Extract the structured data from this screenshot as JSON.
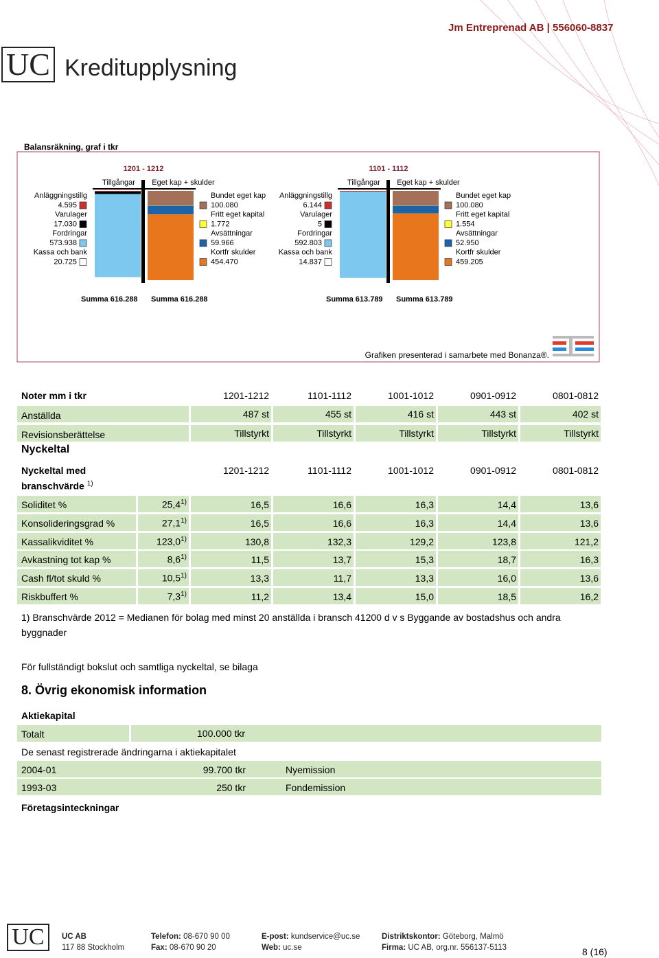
{
  "header": {
    "company": "Jm Entreprenad AB | 556060-8837",
    "logo": "UC",
    "title": "Kreditupplysning"
  },
  "balance": {
    "title": "Balansräkning, graf i tkr",
    "panels": [
      {
        "period": "1201 - 1212",
        "assets_label": "Tillgångar",
        "liabilities_label": "Eget kap + skulder",
        "assets": [
          {
            "name": "Anläggningstillg",
            "value": 4595,
            "label": "4.595",
            "color": "#c8312f"
          },
          {
            "name": "Varulager",
            "value": 17030,
            "label": "17.030",
            "color": "#000000"
          },
          {
            "name": "Fordringar",
            "value": 573938,
            "label": "573.938",
            "color": "#7cc8ee"
          },
          {
            "name": "Kassa och bank",
            "value": 20725,
            "label": "20.725",
            "color": "#ffffff"
          }
        ],
        "liabilities": [
          {
            "name": "Bundet eget kap",
            "value": 100080,
            "label": "100.080",
            "color": "#a5705a"
          },
          {
            "name": "Fritt eget kapital",
            "value": 1772,
            "label": "1.772",
            "color": "#ffff33"
          },
          {
            "name": "Avsättningar",
            "value": 59966,
            "label": "59.966",
            "color": "#1d63a8"
          },
          {
            "name": "Kortfr skulder",
            "value": 454470,
            "label": "454.470",
            "color": "#e8761c"
          }
        ],
        "assets_sum": "Summa 616.288",
        "liabilities_sum": "Summa 616.288"
      },
      {
        "period": "1101 - 1112",
        "assets_label": "Tillgångar",
        "liabilities_label": "Eget kap + skulder",
        "assets": [
          {
            "name": "Anläggningstillg",
            "value": 6144,
            "label": "6.144",
            "color": "#c8312f"
          },
          {
            "name": "Varulager",
            "value": 5,
            "label": "5",
            "color": "#000000"
          },
          {
            "name": "Fordringar",
            "value": 592803,
            "label": "592.803",
            "color": "#7cc8ee"
          },
          {
            "name": "Kassa och bank",
            "value": 14837,
            "label": "14.837",
            "color": "#ffffff"
          }
        ],
        "liabilities": [
          {
            "name": "Bundet eget kap",
            "value": 100080,
            "label": "100.080",
            "color": "#a5705a"
          },
          {
            "name": "Fritt eget kapital",
            "value": 1554,
            "label": "1.554",
            "color": "#ffff33"
          },
          {
            "name": "Avsättningar",
            "value": 52950,
            "label": "52.950",
            "color": "#1d63a8"
          },
          {
            "name": "Kortfr skulder",
            "value": 459205,
            "label": "459.205",
            "color": "#e8761c"
          }
        ],
        "assets_sum": "Summa 613.789",
        "liabilities_sum": "Summa 613.789"
      }
    ],
    "credit": "Grafiken presenterad i samarbete med Bonanza®."
  },
  "notes": {
    "title": "Noter mm i tkr",
    "periods": [
      "1201-1212",
      "1101-1112",
      "1001-1012",
      "0901-0912",
      "0801-0812"
    ],
    "rows": [
      {
        "label": "Anställda",
        "values": [
          "487 st",
          "455 st",
          "416 st",
          "443 st",
          "402 st"
        ]
      },
      {
        "label": "Revisionsberättelse",
        "values": [
          "Tillstyrkt",
          "Tillstyrkt",
          "Tillstyrkt",
          "Tillstyrkt",
          "Tillstyrkt"
        ]
      }
    ]
  },
  "key_figures": {
    "title": "Nyckeltal",
    "header": "Nyckeltal med",
    "header2": "branschvärde",
    "header_note": "1)",
    "periods": [
      "1201-1212",
      "1101-1112",
      "1001-1012",
      "0901-0912",
      "0801-0812"
    ],
    "rows": [
      {
        "label": "Soliditet %",
        "industry": "25,4",
        "note": "1)",
        "values": [
          "16,5",
          "16,6",
          "16,3",
          "14,4",
          "13,6"
        ]
      },
      {
        "label": "Konsolideringsgrad %",
        "industry": "27,1",
        "note": "1)",
        "values": [
          "16,5",
          "16,6",
          "16,3",
          "14,4",
          "13,6"
        ]
      },
      {
        "label": "Kassalikviditet %",
        "industry": "123,0",
        "note": "1)",
        "values": [
          "130,8",
          "132,3",
          "129,2",
          "123,8",
          "121,2"
        ]
      },
      {
        "label": "Avkastning tot kap %",
        "industry": "8,6",
        "note": "1)",
        "values": [
          "11,5",
          "13,7",
          "15,3",
          "18,7",
          "16,3"
        ]
      },
      {
        "label": "Cash fl/tot skuld %",
        "industry": "10,5",
        "note": "1)",
        "values": [
          "13,3",
          "11,7",
          "13,3",
          "16,0",
          "13,6"
        ]
      },
      {
        "label": "Riskbuffert %",
        "industry": "7,3",
        "note": "1)",
        "values": [
          "11,2",
          "13,4",
          "15,0",
          "18,5",
          "16,2"
        ]
      }
    ],
    "footnote": "1) Branschvärde 2012  = Medianen för bolag med minst 20 anställda i bransch 41200 d v s Byggande av bostadshus och andra byggnader",
    "attachment": "För fullständigt bokslut och samtliga nyckeltal, se bilaga"
  },
  "section8": {
    "title": "8. Övrig ekonomisk information",
    "share_capital_title": "Aktiekapital",
    "total_label": "Totalt",
    "total": "100.000 tkr",
    "changes_title": "De senast registrerade ändringarna i aktiekapitalet",
    "changes": [
      [
        "2004-01",
        "99.700 tkr",
        "Nyemission"
      ],
      [
        "1993-03",
        "250 tkr",
        "Fondemission"
      ]
    ],
    "mortgages_title": "Företagsinteckningar"
  },
  "footer": {
    "logo": "UC",
    "columns": [
      [
        {
          "label": "UC AB",
          "value": ""
        },
        {
          "label": "",
          "value": "117 88 Stockholm"
        }
      ],
      [
        {
          "label": "Telefon:",
          "value": "08-670 90 00"
        },
        {
          "label": "Fax:",
          "value": "08-670 90 20"
        }
      ],
      [
        {
          "label": "E-post:",
          "value": "kundservice@uc.se"
        },
        {
          "label": "Web:",
          "value": "uc.se"
        }
      ],
      [
        {
          "label": "Distriktskontor:",
          "value": "Göteborg, Malmö"
        },
        {
          "label": "Firma:",
          "value": "UC AB, org.nr. 556137-5113"
        }
      ]
    ],
    "page": "8 (16)"
  }
}
